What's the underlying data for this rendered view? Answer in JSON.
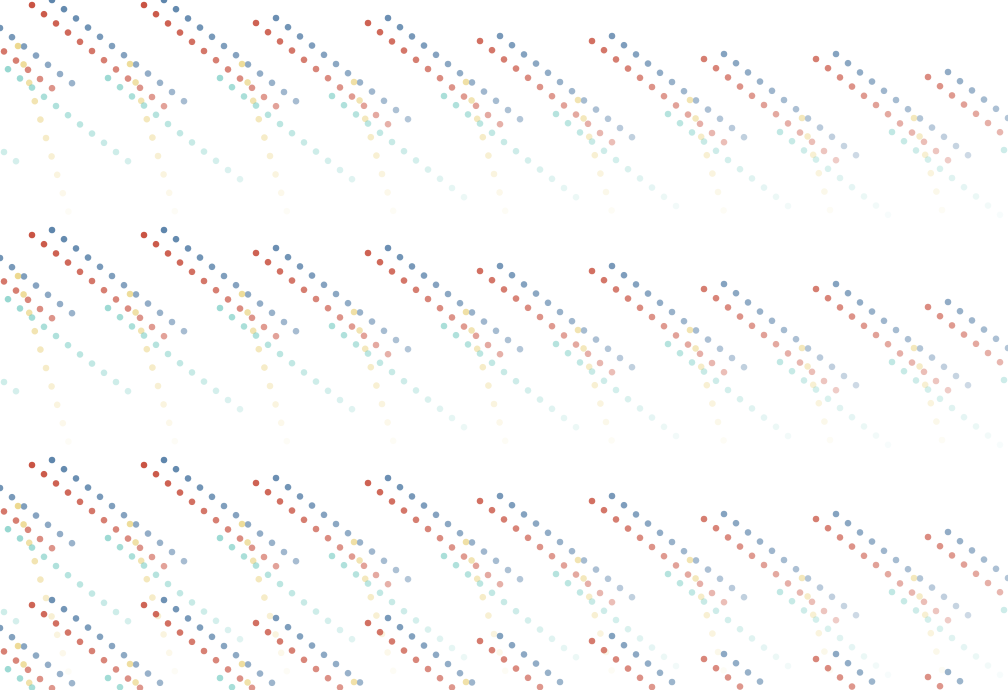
{
  "background": "#ffffff",
  "pattern": {
    "name": "confetti-dots",
    "palette": [
      "#c8503f",
      "#5f86ac",
      "#e8cf74",
      "#6bc7bd"
    ],
    "bands": [
      {
        "name": "top-band",
        "opacity": [
          1.0,
          0.05
        ]
      },
      {
        "name": "middle-band",
        "opacity": [
          1.0,
          0.05
        ]
      },
      {
        "name": "lower-band",
        "opacity": [
          1.0,
          0.05
        ]
      },
      {
        "name": "bottom-band",
        "opacity": [
          0.9,
          0.15
        ]
      }
    ]
  }
}
